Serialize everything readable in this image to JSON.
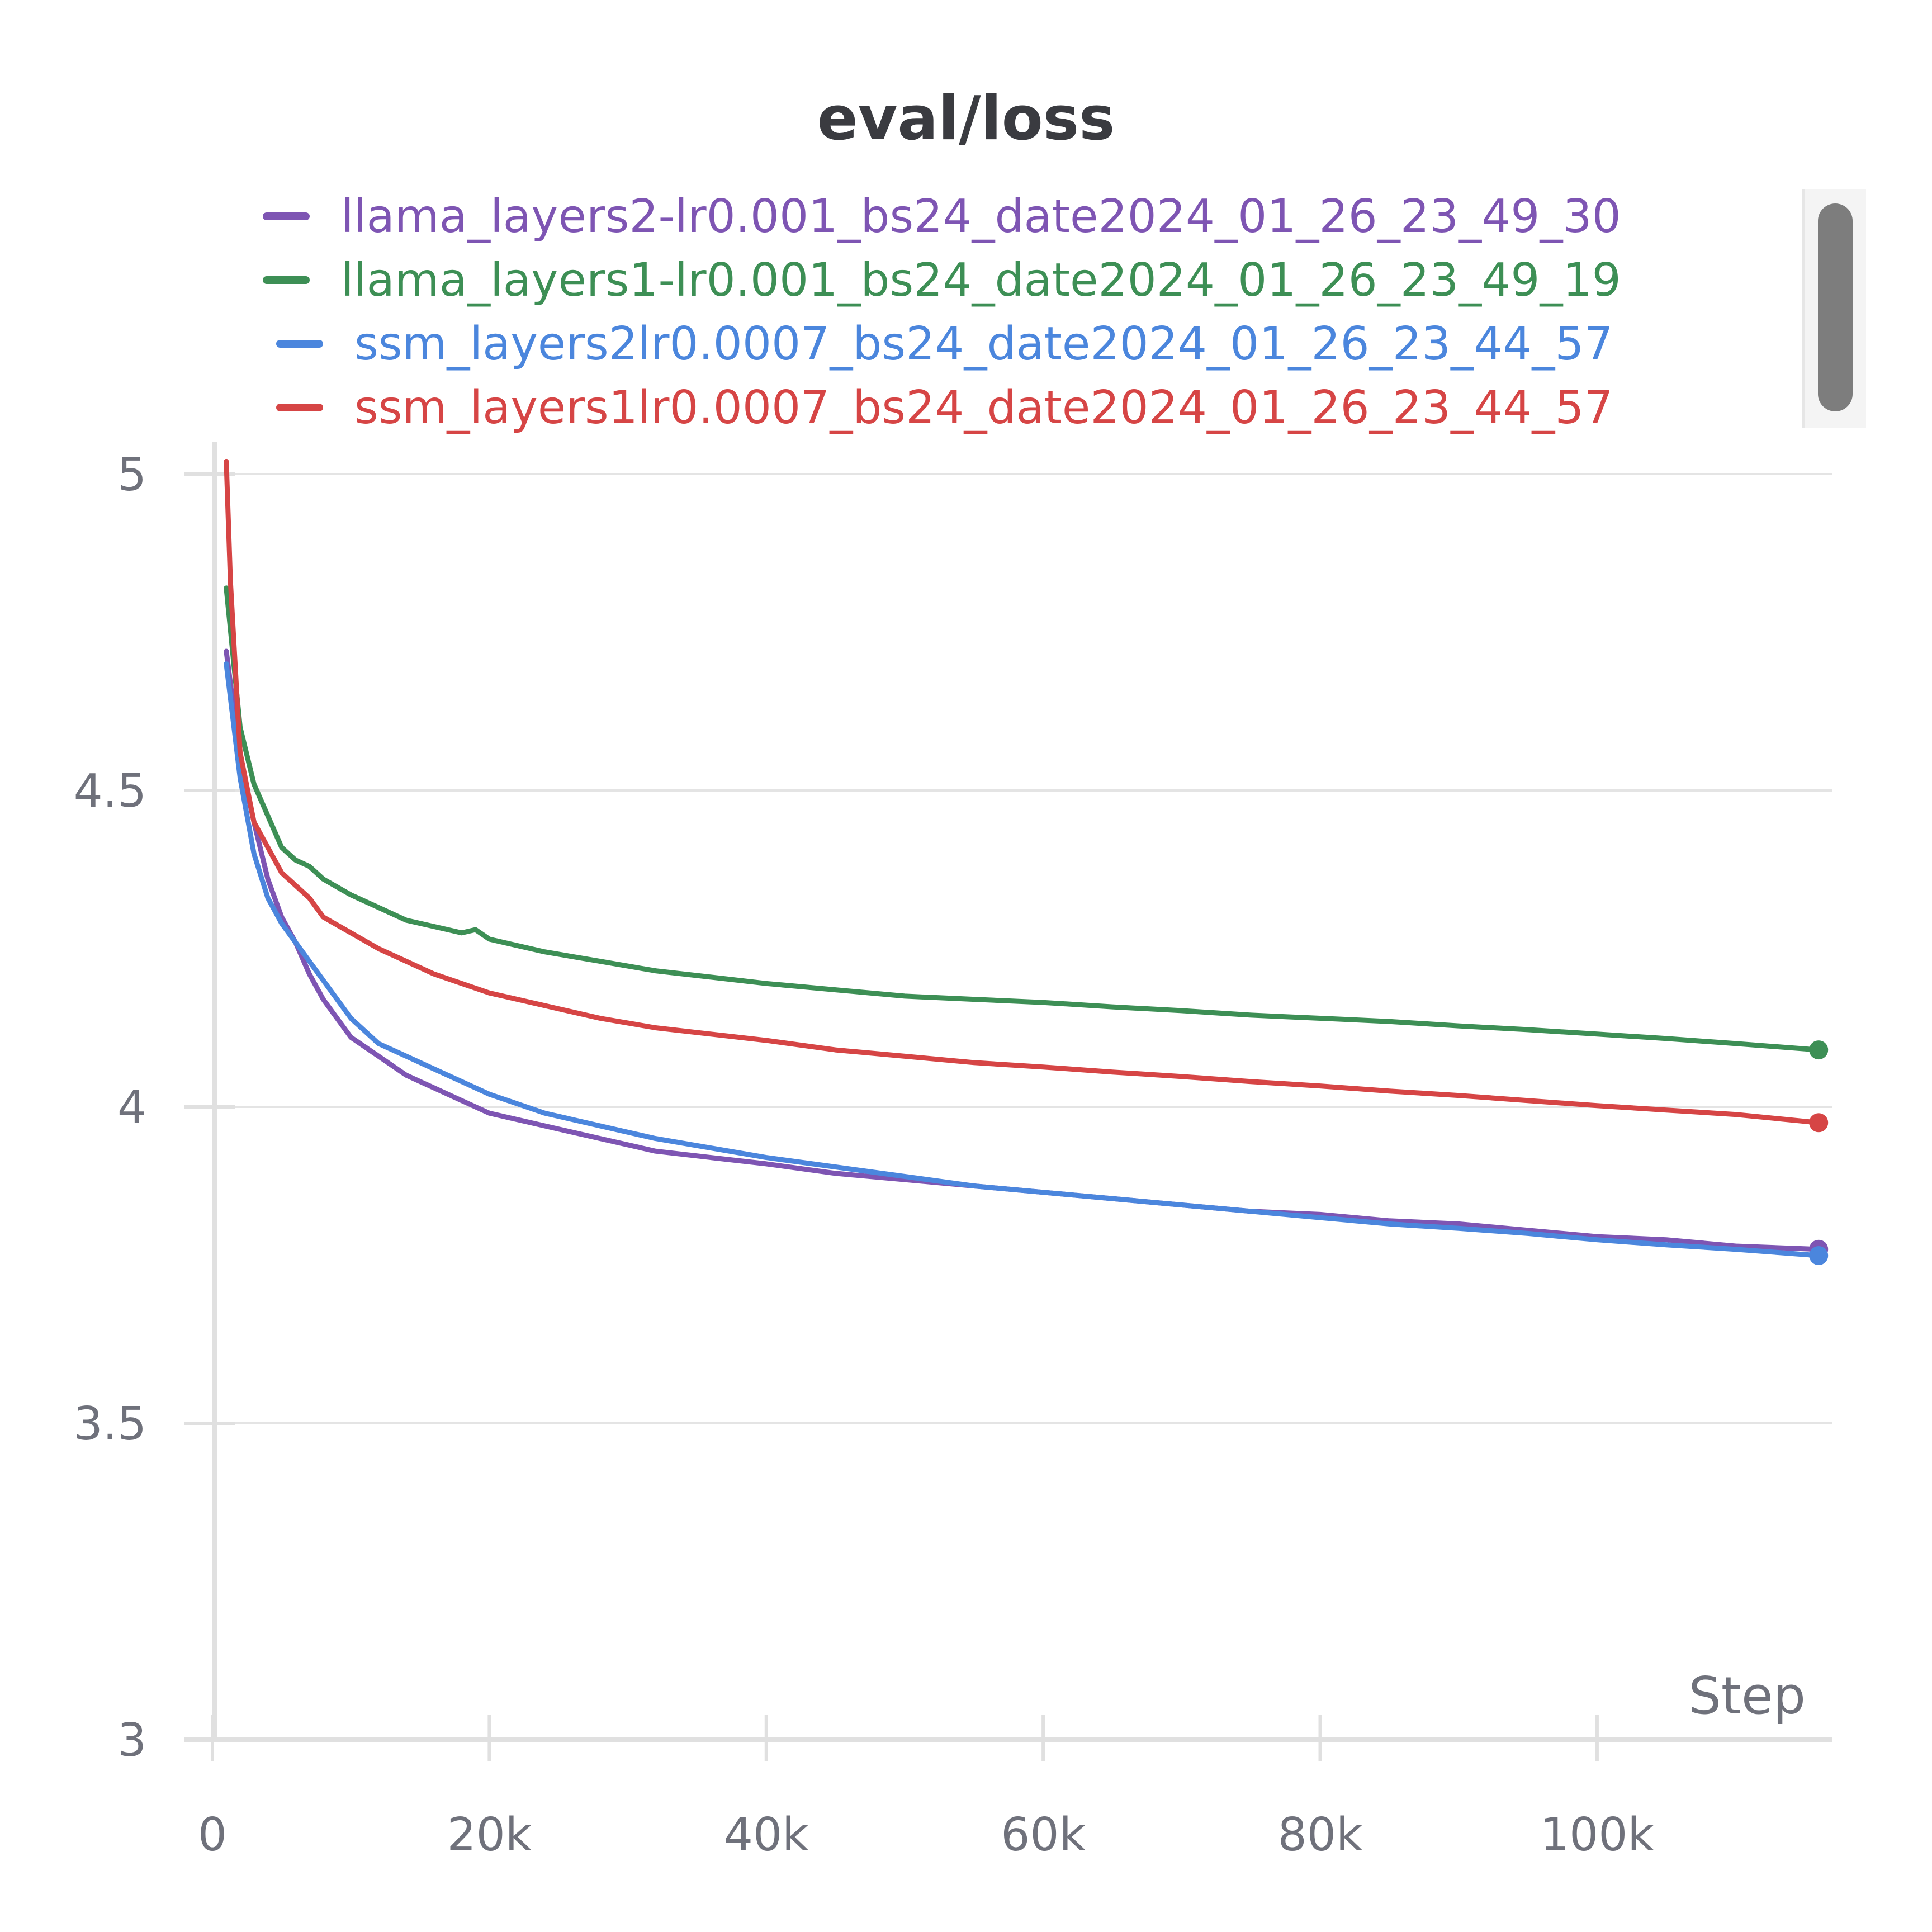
{
  "chart_data": {
    "type": "line",
    "title": "eval/loss",
    "xlabel": "Step",
    "ylabel": "",
    "xlim": [
      0,
      117000
    ],
    "ylim": [
      3,
      5
    ],
    "xticks": [
      0,
      20000,
      40000,
      60000,
      80000,
      100000
    ],
    "xtick_labels": [
      "0",
      "20k",
      "40k",
      "60k",
      "80k",
      "100k"
    ],
    "yticks": [
      3,
      3.5,
      4,
      4.5,
      5
    ],
    "ytick_labels": [
      "3",
      "3.5",
      "4",
      "4.5",
      "5"
    ],
    "grid": true,
    "legend_position": "top",
    "series": [
      {
        "name": "llama_layers2-lr0.001_bs24_date2024_01_26_23_49_30",
        "color": "#7e55b3",
        "x": [
          1000,
          2000,
          3000,
          4000,
          5000,
          6000,
          7000,
          8000,
          10000,
          12000,
          14000,
          16000,
          18000,
          20000,
          24000,
          28000,
          32000,
          36000,
          40000,
          45000,
          50000,
          55000,
          60000,
          65000,
          70000,
          75000,
          80000,
          85000,
          90000,
          95000,
          100000,
          105000,
          110000,
          116000
        ],
        "y": [
          4.72,
          4.55,
          4.45,
          4.36,
          4.3,
          4.26,
          4.21,
          4.17,
          4.11,
          4.08,
          4.05,
          4.03,
          4.01,
          3.99,
          3.97,
          3.95,
          3.93,
          3.92,
          3.91,
          3.895,
          3.885,
          3.875,
          3.865,
          3.855,
          3.845,
          3.835,
          3.83,
          3.82,
          3.815,
          3.805,
          3.795,
          3.79,
          3.78,
          3.775
        ]
      },
      {
        "name": "llama_layers1-lr0.001_bs24_date2024_01_26_23_49_19",
        "color": "#3d8f55",
        "x": [
          1000,
          2000,
          3000,
          4000,
          5000,
          6000,
          7000,
          8000,
          10000,
          12000,
          14000,
          16000,
          17000,
          18000,
          19000,
          20000,
          24000,
          28000,
          32000,
          36000,
          40000,
          45000,
          50000,
          55000,
          60000,
          65000,
          70000,
          75000,
          80000,
          85000,
          90000,
          95000,
          100000,
          105000,
          110000,
          116000
        ],
        "y": [
          4.82,
          4.6,
          4.51,
          4.46,
          4.41,
          4.39,
          4.38,
          4.36,
          4.335,
          4.315,
          4.295,
          4.285,
          4.28,
          4.275,
          4.28,
          4.265,
          4.245,
          4.23,
          4.215,
          4.205,
          4.195,
          4.185,
          4.175,
          4.17,
          4.165,
          4.158,
          4.152,
          4.145,
          4.14,
          4.135,
          4.128,
          4.122,
          4.115,
          4.108,
          4.1,
          4.09
        ]
      },
      {
        "name": "ssm_layers2lr0.0007_bs24_date2024_01_26_23_44_57",
        "color": "#4b86dd",
        "x": [
          1000,
          2000,
          3000,
          4000,
          5000,
          6000,
          7000,
          8000,
          10000,
          12000,
          14000,
          16000,
          18000,
          20000,
          24000,
          28000,
          32000,
          36000,
          40000,
          45000,
          50000,
          55000,
          60000,
          65000,
          70000,
          75000,
          80000,
          85000,
          90000,
          95000,
          100000,
          105000,
          110000,
          116000
        ],
        "y": [
          4.7,
          4.52,
          4.4,
          4.33,
          4.29,
          4.26,
          4.23,
          4.2,
          4.14,
          4.1,
          4.08,
          4.06,
          4.04,
          4.02,
          3.99,
          3.97,
          3.95,
          3.935,
          3.92,
          3.905,
          3.89,
          3.875,
          3.865,
          3.855,
          3.845,
          3.835,
          3.825,
          3.815,
          3.808,
          3.8,
          3.79,
          3.782,
          3.775,
          3.765
        ]
      },
      {
        "name": "ssm_layers1lr0.0007_bs24_date2024_01_26_23_44_57",
        "color": "#d64545",
        "x": [
          1000,
          1300,
          2000,
          3000,
          4000,
          5000,
          6000,
          7000,
          8000,
          10000,
          12000,
          14000,
          16000,
          18000,
          20000,
          24000,
          28000,
          32000,
          36000,
          40000,
          45000,
          50000,
          55000,
          60000,
          65000,
          70000,
          75000,
          80000,
          85000,
          90000,
          95000,
          100000,
          105000,
          110000,
          116000
        ],
        "y": [
          5.02,
          4.83,
          4.56,
          4.45,
          4.41,
          4.37,
          4.35,
          4.33,
          4.3,
          4.275,
          4.25,
          4.23,
          4.21,
          4.195,
          4.18,
          4.16,
          4.14,
          4.125,
          4.115,
          4.105,
          4.09,
          4.08,
          4.07,
          4.063,
          4.055,
          4.048,
          4.04,
          4.033,
          4.025,
          4.018,
          4.01,
          4.002,
          3.995,
          3.988,
          3.975
        ]
      }
    ]
  }
}
